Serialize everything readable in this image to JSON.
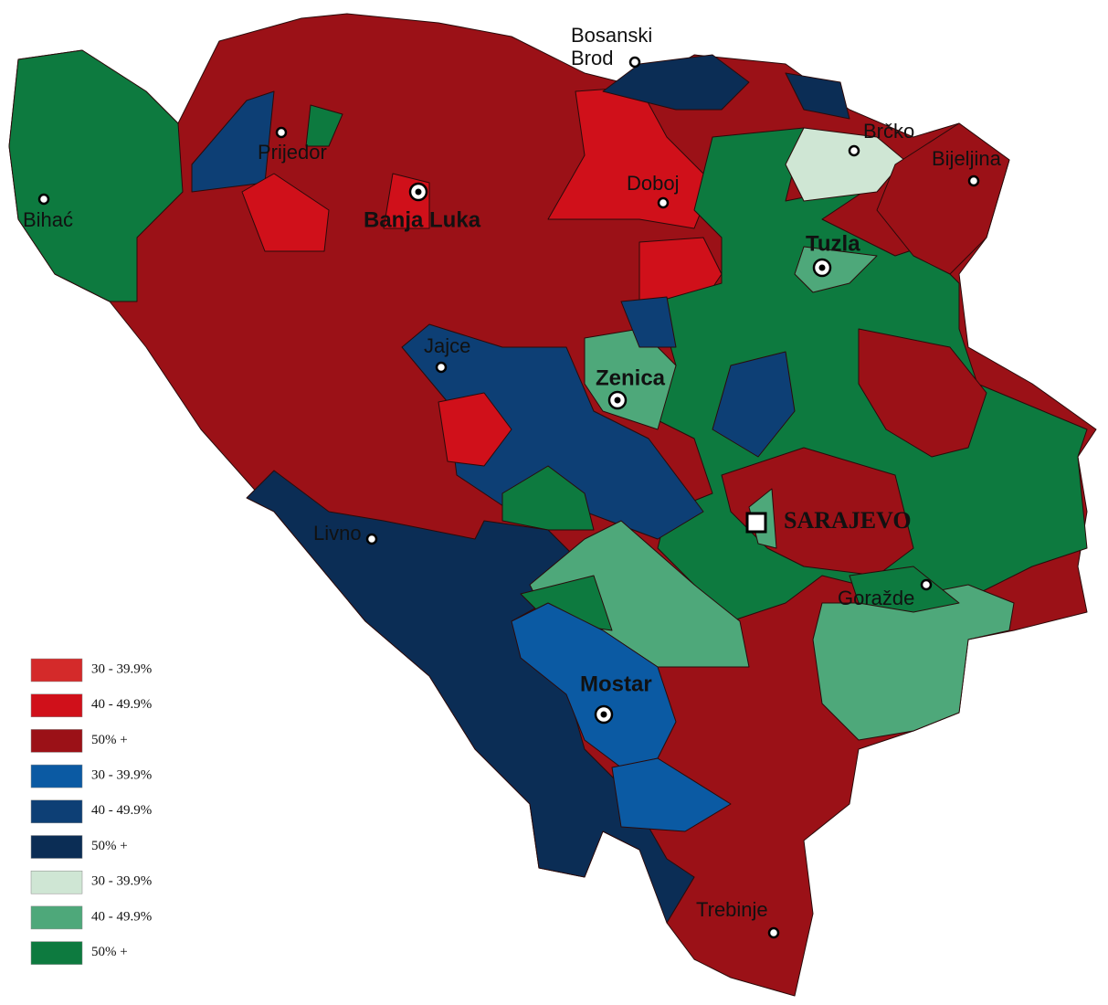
{
  "cities": [
    {
      "label_lines": [
        "Bosanski",
        "Brod"
      ]
    },
    {
      "label_lines": [
        "Prijedor"
      ]
    },
    {
      "label_lines": [
        "Bihać"
      ]
    },
    {
      "label_lines": [
        "Banja Luka"
      ],
      "bold": true
    },
    {
      "label_lines": [
        "Doboj"
      ]
    },
    {
      "label_lines": [
        "Brčko"
      ]
    },
    {
      "label_lines": [
        "Bijeljina"
      ]
    },
    {
      "label_lines": [
        "Tuzla"
      ],
      "bold": true
    },
    {
      "label_lines": [
        "Jajce"
      ]
    },
    {
      "label_lines": [
        "Zenica"
      ],
      "bold": true
    },
    {
      "label_lines": [
        "SARAJEVO"
      ],
      "bold": true,
      "capital": true
    },
    {
      "label_lines": [
        "Livno"
      ]
    },
    {
      "label_lines": [
        "Goražde"
      ]
    },
    {
      "label_lines": [
        "Mostar"
      ],
      "bold": true
    },
    {
      "label_lines": [
        "Trebinje"
      ]
    }
  ],
  "legend": [
    {
      "label": "30 - 39.9%",
      "color": "#d42a2a"
    },
    {
      "label": "40 - 49.9%",
      "color": "#d0101a"
    },
    {
      "label": "50% +",
      "color": "#9b1117"
    },
    {
      "label": "30 - 39.9%",
      "color": "#0b5aa3"
    },
    {
      "label": "40 - 49.9%",
      "color": "#0d3f75"
    },
    {
      "label": "50% +",
      "color": "#0b2d55"
    },
    {
      "label": "30 - 39.9%",
      "color": "#cfe6d4"
    },
    {
      "label": "40 - 49.9%",
      "color": "#4ea87a"
    },
    {
      "label": "50% +",
      "color": "#0d7a3f"
    }
  ]
}
